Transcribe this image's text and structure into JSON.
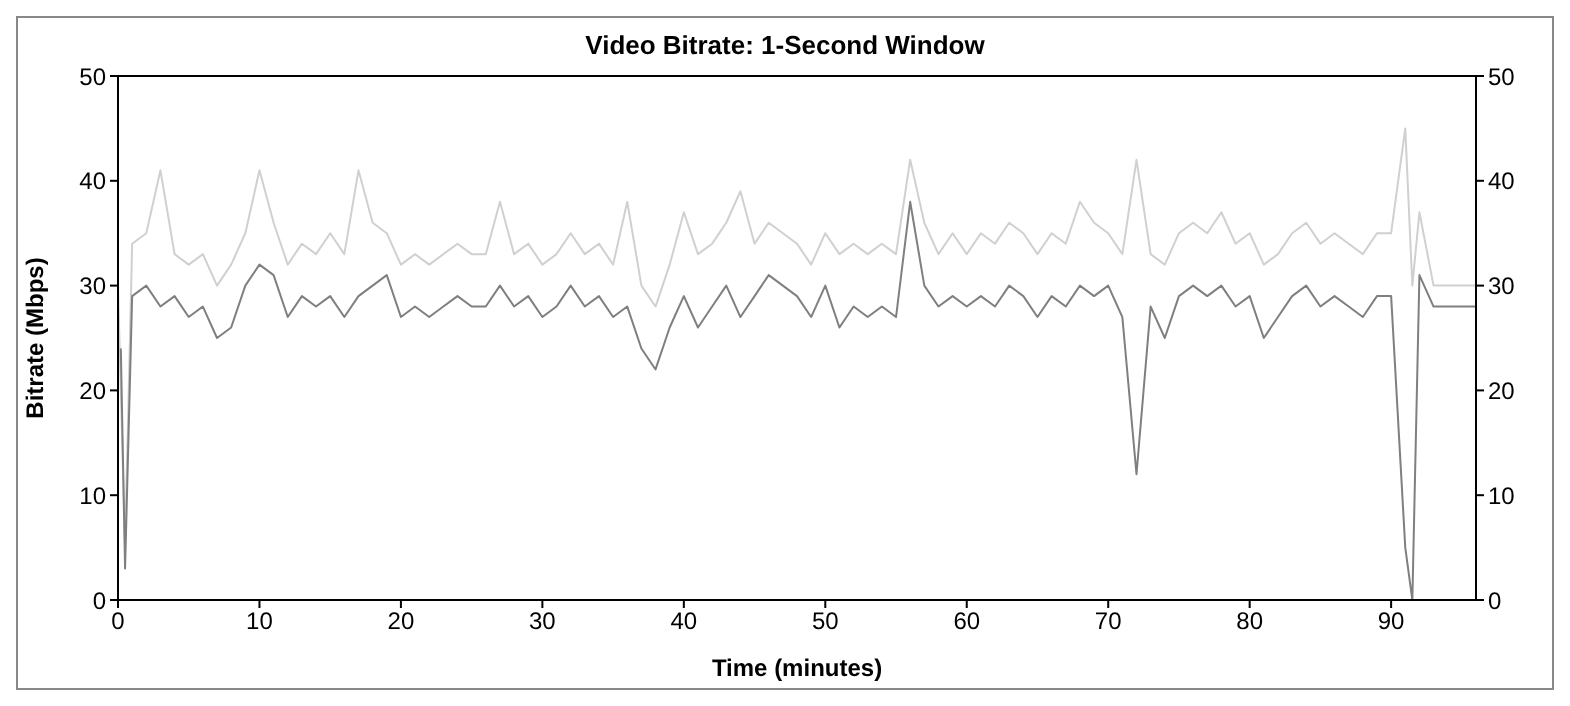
{
  "chart_data": {
    "type": "line",
    "title": "Video Bitrate: 1-Second Window",
    "xlabel": "Time (minutes)",
    "ylabel": "Bitrate (Mbps)",
    "xlim": [
      0,
      96
    ],
    "xticks": [
      0,
      10,
      20,
      30,
      40,
      50,
      60,
      70,
      80,
      90
    ],
    "ylim": [
      0,
      50
    ],
    "yticks": [
      0,
      10,
      20,
      30,
      40,
      50
    ],
    "y2lim": [
      0,
      50
    ],
    "y2ticks": [
      0,
      10,
      20,
      30,
      40,
      50
    ],
    "grid": false,
    "legend": false,
    "marker": "none",
    "line_style": "solid",
    "series": [
      {
        "color": "#d0d0d0",
        "x": [
          0,
          0.5,
          1,
          2,
          3,
          4,
          5,
          6,
          7,
          8,
          9,
          10,
          11,
          12,
          13,
          14,
          15,
          16,
          17,
          18,
          19,
          20,
          21,
          22,
          23,
          24,
          25,
          26,
          27,
          28,
          29,
          30,
          31,
          32,
          33,
          34,
          35,
          36,
          37,
          38,
          39,
          40,
          41,
          42,
          43,
          44,
          45,
          46,
          47,
          48,
          49,
          50,
          51,
          52,
          53,
          54,
          55,
          56,
          57,
          58,
          59,
          60,
          61,
          62,
          63,
          64,
          65,
          66,
          67,
          68,
          69,
          70,
          71,
          72,
          73,
          74,
          75,
          76,
          77,
          78,
          79,
          80,
          81,
          82,
          83,
          84,
          85,
          86,
          87,
          88,
          89,
          90,
          91,
          91.5,
          92,
          93,
          94,
          95,
          96
        ],
        "values": [
          30,
          5,
          34,
          35,
          41,
          33,
          32,
          33,
          30,
          32,
          35,
          41,
          36,
          32,
          34,
          33,
          35,
          33,
          41,
          36,
          35,
          32,
          33,
          32,
          33,
          34,
          33,
          33,
          38,
          33,
          34,
          32,
          33,
          35,
          33,
          34,
          32,
          38,
          30,
          28,
          32,
          37,
          33,
          34,
          36,
          39,
          34,
          36,
          35,
          34,
          32,
          35,
          33,
          34,
          33,
          34,
          33,
          42,
          36,
          33,
          35,
          33,
          35,
          34,
          36,
          35,
          33,
          35,
          34,
          38,
          36,
          35,
          33,
          42,
          33,
          32,
          35,
          36,
          35,
          37,
          34,
          35,
          32,
          33,
          35,
          36,
          34,
          35,
          34,
          33,
          35,
          35,
          45,
          30,
          37,
          30,
          30,
          30,
          30
        ]
      },
      {
        "color": "#7f7f7f",
        "x": [
          0.2,
          0.5,
          1,
          2,
          3,
          4,
          5,
          6,
          7,
          8,
          9,
          10,
          11,
          12,
          13,
          14,
          15,
          16,
          17,
          18,
          19,
          20,
          21,
          22,
          23,
          24,
          25,
          26,
          27,
          28,
          29,
          30,
          31,
          32,
          33,
          34,
          35,
          36,
          37,
          38,
          39,
          40,
          41,
          42,
          43,
          44,
          45,
          46,
          47,
          48,
          49,
          50,
          51,
          52,
          53,
          54,
          55,
          56,
          57,
          58,
          59,
          60,
          61,
          62,
          63,
          64,
          65,
          66,
          67,
          68,
          69,
          70,
          71,
          72,
          73,
          74,
          75,
          76,
          77,
          78,
          79,
          80,
          81,
          82,
          83,
          84,
          85,
          86,
          87,
          88,
          89,
          90,
          91,
          91.5,
          92,
          93,
          94,
          95,
          96
        ],
        "values": [
          24,
          3,
          29,
          30,
          28,
          29,
          27,
          28,
          25,
          26,
          30,
          32,
          31,
          27,
          29,
          28,
          29,
          27,
          29,
          30,
          31,
          27,
          28,
          27,
          28,
          29,
          28,
          28,
          30,
          28,
          29,
          27,
          28,
          30,
          28,
          29,
          27,
          28,
          24,
          22,
          26,
          29,
          26,
          28,
          30,
          27,
          29,
          31,
          30,
          29,
          27,
          30,
          26,
          28,
          27,
          28,
          27,
          38,
          30,
          28,
          29,
          28,
          29,
          28,
          30,
          29,
          27,
          29,
          28,
          30,
          29,
          30,
          27,
          12,
          28,
          25,
          29,
          30,
          29,
          30,
          28,
          29,
          25,
          27,
          29,
          30,
          28,
          29,
          28,
          27,
          29,
          29,
          5,
          0,
          31,
          28,
          28,
          28,
          28
        ]
      }
    ]
  }
}
